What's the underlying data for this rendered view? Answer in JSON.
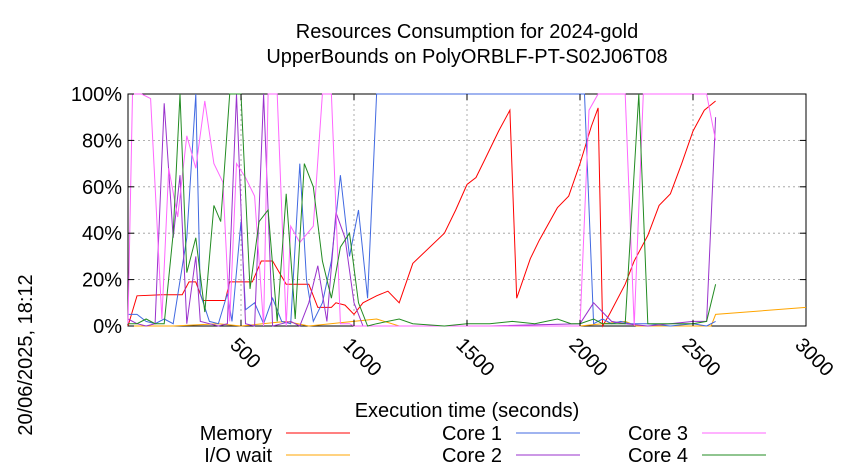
{
  "chart_data": {
    "type": "line",
    "title_line1": "Resources Consumption for 2024-gold",
    "title_line2": "UpperBounds on PolyORBLF-PT-S02J06T08",
    "xlabel": "Execution time (seconds)",
    "ylabel": "",
    "side_label": "20/06/2025, 18:12",
    "xlim": [
      0,
      3000
    ],
    "ylim": [
      0,
      100
    ],
    "x_ticks": [
      500,
      1000,
      1500,
      2000,
      2500,
      3000
    ],
    "y_ticks": [
      {
        "v": 0,
        "label": "0%"
      },
      {
        "v": 20,
        "label": "20%"
      },
      {
        "v": 40,
        "label": "40%"
      },
      {
        "v": 60,
        "label": "60%"
      },
      {
        "v": 80,
        "label": "80%"
      },
      {
        "v": 100,
        "label": "100%"
      }
    ],
    "grid": true,
    "legend_position": "bottom",
    "series": [
      {
        "name": "Memory",
        "color": "#ff0000",
        "points": [
          [
            0,
            0
          ],
          [
            40,
            13
          ],
          [
            150,
            13.5
          ],
          [
            240,
            13.5
          ],
          [
            270,
            19
          ],
          [
            300,
            19
          ],
          [
            330,
            11
          ],
          [
            430,
            11
          ],
          [
            450,
            19
          ],
          [
            550,
            19
          ],
          [
            590,
            28
          ],
          [
            640,
            28
          ],
          [
            700,
            18
          ],
          [
            800,
            18
          ],
          [
            840,
            8
          ],
          [
            900,
            8
          ],
          [
            920,
            10
          ],
          [
            960,
            9
          ],
          [
            1000,
            5
          ],
          [
            1040,
            10
          ],
          [
            1100,
            13
          ],
          [
            1150,
            15
          ],
          [
            1200,
            10
          ],
          [
            1260,
            27
          ],
          [
            1400,
            40
          ],
          [
            1450,
            50
          ],
          [
            1500,
            61
          ],
          [
            1540,
            64
          ],
          [
            1580,
            72
          ],
          [
            1640,
            84
          ],
          [
            1690,
            93
          ],
          [
            1720,
            12
          ],
          [
            1780,
            29
          ],
          [
            1820,
            37
          ],
          [
            1900,
            51
          ],
          [
            1950,
            56
          ],
          [
            2000,
            70
          ],
          [
            2050,
            86
          ],
          [
            2080,
            94
          ],
          [
            2100,
            0
          ],
          [
            2130,
            5
          ],
          [
            2200,
            18
          ],
          [
            2240,
            28
          ],
          [
            2300,
            39
          ],
          [
            2350,
            52
          ],
          [
            2400,
            57
          ],
          [
            2450,
            70
          ],
          [
            2500,
            84
          ],
          [
            2550,
            93
          ],
          [
            2600,
            97
          ]
        ]
      },
      {
        "name": "I/O wait",
        "color": "#ffa500",
        "points": [
          [
            0,
            0
          ],
          [
            200,
            0
          ],
          [
            400,
            1
          ],
          [
            500,
            0
          ],
          [
            700,
            2
          ],
          [
            800,
            0
          ],
          [
            1100,
            3
          ],
          [
            1200,
            0
          ],
          [
            1600,
            0
          ],
          [
            2000,
            0
          ],
          [
            2200,
            2
          ],
          [
            2250,
            0
          ],
          [
            2500,
            0
          ],
          [
            2580,
            0
          ],
          [
            2600,
            5
          ],
          [
            3000,
            8
          ]
        ]
      },
      {
        "name": "Core 1",
        "color": "#4169e1",
        "points": [
          [
            0,
            5
          ],
          [
            40,
            5
          ],
          [
            80,
            2
          ],
          [
            120,
            1
          ],
          [
            160,
            3
          ],
          [
            200,
            1
          ],
          [
            260,
            38
          ],
          [
            300,
            100
          ],
          [
            320,
            14
          ],
          [
            360,
            2
          ],
          [
            400,
            1
          ],
          [
            440,
            14
          ],
          [
            460,
            2
          ],
          [
            500,
            45
          ],
          [
            520,
            7
          ],
          [
            560,
            10
          ],
          [
            600,
            1
          ],
          [
            640,
            12
          ],
          [
            680,
            2
          ],
          [
            720,
            1
          ],
          [
            760,
            70
          ],
          [
            790,
            20
          ],
          [
            820,
            2
          ],
          [
            860,
            10
          ],
          [
            900,
            28
          ],
          [
            940,
            65
          ],
          [
            980,
            30
          ],
          [
            1020,
            50
          ],
          [
            1060,
            12
          ],
          [
            1100,
            100
          ],
          [
            2020,
            100
          ],
          [
            2060,
            1
          ],
          [
            2100,
            3
          ],
          [
            2140,
            1
          ],
          [
            2180,
            2
          ],
          [
            2220,
            1
          ],
          [
            2300,
            1
          ],
          [
            2400,
            0
          ],
          [
            2500,
            1
          ],
          [
            2560,
            0
          ],
          [
            2600,
            2
          ]
        ]
      },
      {
        "name": "Core 2",
        "color": "#9932cc",
        "points": [
          [
            0,
            3
          ],
          [
            40,
            1
          ],
          [
            80,
            0
          ],
          [
            120,
            1
          ],
          [
            160,
            96
          ],
          [
            200,
            38
          ],
          [
            230,
            65
          ],
          [
            260,
            1
          ],
          [
            300,
            30
          ],
          [
            320,
            2
          ],
          [
            360,
            1
          ],
          [
            400,
            0
          ],
          [
            440,
            1
          ],
          [
            480,
            100
          ],
          [
            520,
            1
          ],
          [
            560,
            0
          ],
          [
            600,
            100
          ],
          [
            640,
            0
          ],
          [
            680,
            1
          ],
          [
            720,
            2
          ],
          [
            760,
            0
          ],
          [
            800,
            10
          ],
          [
            840,
            26
          ],
          [
            880,
            2
          ],
          [
            920,
            49
          ],
          [
            960,
            38
          ],
          [
            1000,
            10
          ],
          [
            1040,
            0
          ],
          [
            1200,
            0
          ],
          [
            1600,
            0
          ],
          [
            2000,
            1
          ],
          [
            2060,
            10
          ],
          [
            2100,
            6
          ],
          [
            2140,
            2
          ],
          [
            2200,
            1
          ],
          [
            2300,
            0
          ],
          [
            2400,
            1
          ],
          [
            2500,
            2
          ],
          [
            2560,
            2
          ],
          [
            2600,
            90
          ]
        ]
      },
      {
        "name": "Core 3",
        "color": "#ff66ff",
        "points": [
          [
            0,
            1
          ],
          [
            20,
            100
          ],
          [
            60,
            100
          ],
          [
            100,
            98
          ],
          [
            150,
            3
          ],
          [
            180,
            68
          ],
          [
            220,
            47
          ],
          [
            260,
            82
          ],
          [
            300,
            68
          ],
          [
            340,
            97
          ],
          [
            380,
            70
          ],
          [
            420,
            62
          ],
          [
            450,
            2
          ],
          [
            480,
            70
          ],
          [
            520,
            64
          ],
          [
            560,
            56
          ],
          [
            600,
            0
          ],
          [
            620,
            100
          ],
          [
            660,
            100
          ],
          [
            700,
            0
          ],
          [
            720,
            43
          ],
          [
            760,
            36
          ],
          [
            820,
            43
          ],
          [
            860,
            100
          ],
          [
            900,
            100
          ],
          [
            940,
            1
          ],
          [
            980,
            1
          ],
          [
            1000,
            0
          ],
          [
            1200,
            0
          ],
          [
            1600,
            0
          ],
          [
            2000,
            0
          ],
          [
            2040,
            93
          ],
          [
            2080,
            100
          ],
          [
            2200,
            100
          ],
          [
            2240,
            0
          ],
          [
            2280,
            100
          ],
          [
            2560,
            100
          ],
          [
            2600,
            80
          ]
        ]
      },
      {
        "name": "Core 4",
        "color": "#228b22",
        "points": [
          [
            0,
            1
          ],
          [
            40,
            1
          ],
          [
            80,
            3
          ],
          [
            120,
            1
          ],
          [
            160,
            1
          ],
          [
            200,
            40
          ],
          [
            230,
            100
          ],
          [
            260,
            23
          ],
          [
            300,
            38
          ],
          [
            340,
            6
          ],
          [
            380,
            52
          ],
          [
            410,
            45
          ],
          [
            450,
            100
          ],
          [
            500,
            100
          ],
          [
            540,
            16
          ],
          [
            580,
            45
          ],
          [
            620,
            50
          ],
          [
            660,
            2
          ],
          [
            700,
            57
          ],
          [
            740,
            3
          ],
          [
            780,
            70
          ],
          [
            820,
            60
          ],
          [
            860,
            28
          ],
          [
            900,
            12
          ],
          [
            940,
            34
          ],
          [
            980,
            40
          ],
          [
            1020,
            10
          ],
          [
            1060,
            0
          ],
          [
            1100,
            1
          ],
          [
            1200,
            3
          ],
          [
            1260,
            1
          ],
          [
            1400,
            0
          ],
          [
            1500,
            1
          ],
          [
            1600,
            1
          ],
          [
            1700,
            2
          ],
          [
            1800,
            1
          ],
          [
            1900,
            3
          ],
          [
            1960,
            1
          ],
          [
            2000,
            1
          ],
          [
            2060,
            3
          ],
          [
            2100,
            1
          ],
          [
            2200,
            1
          ],
          [
            2260,
            100
          ],
          [
            2300,
            1
          ],
          [
            2400,
            1
          ],
          [
            2500,
            1
          ],
          [
            2560,
            2
          ],
          [
            2600,
            18
          ]
        ]
      }
    ]
  }
}
